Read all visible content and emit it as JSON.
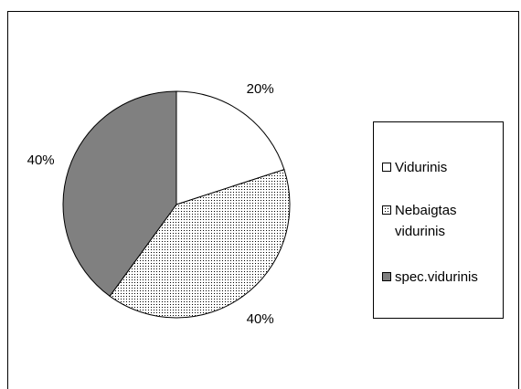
{
  "chart_data": {
    "type": "pie",
    "categories": [
      "Vidurinis",
      "Nebaigtas vidurinis",
      "spec.vidurinis"
    ],
    "values": [
      20,
      40,
      40
    ],
    "value_labels": [
      "20%",
      "40%",
      "40%"
    ],
    "colors": [
      "#ffffff",
      "#d9d9d9",
      "#808080"
    ],
    "patterns": [
      null,
      "dots",
      null
    ],
    "legend": "right"
  }
}
